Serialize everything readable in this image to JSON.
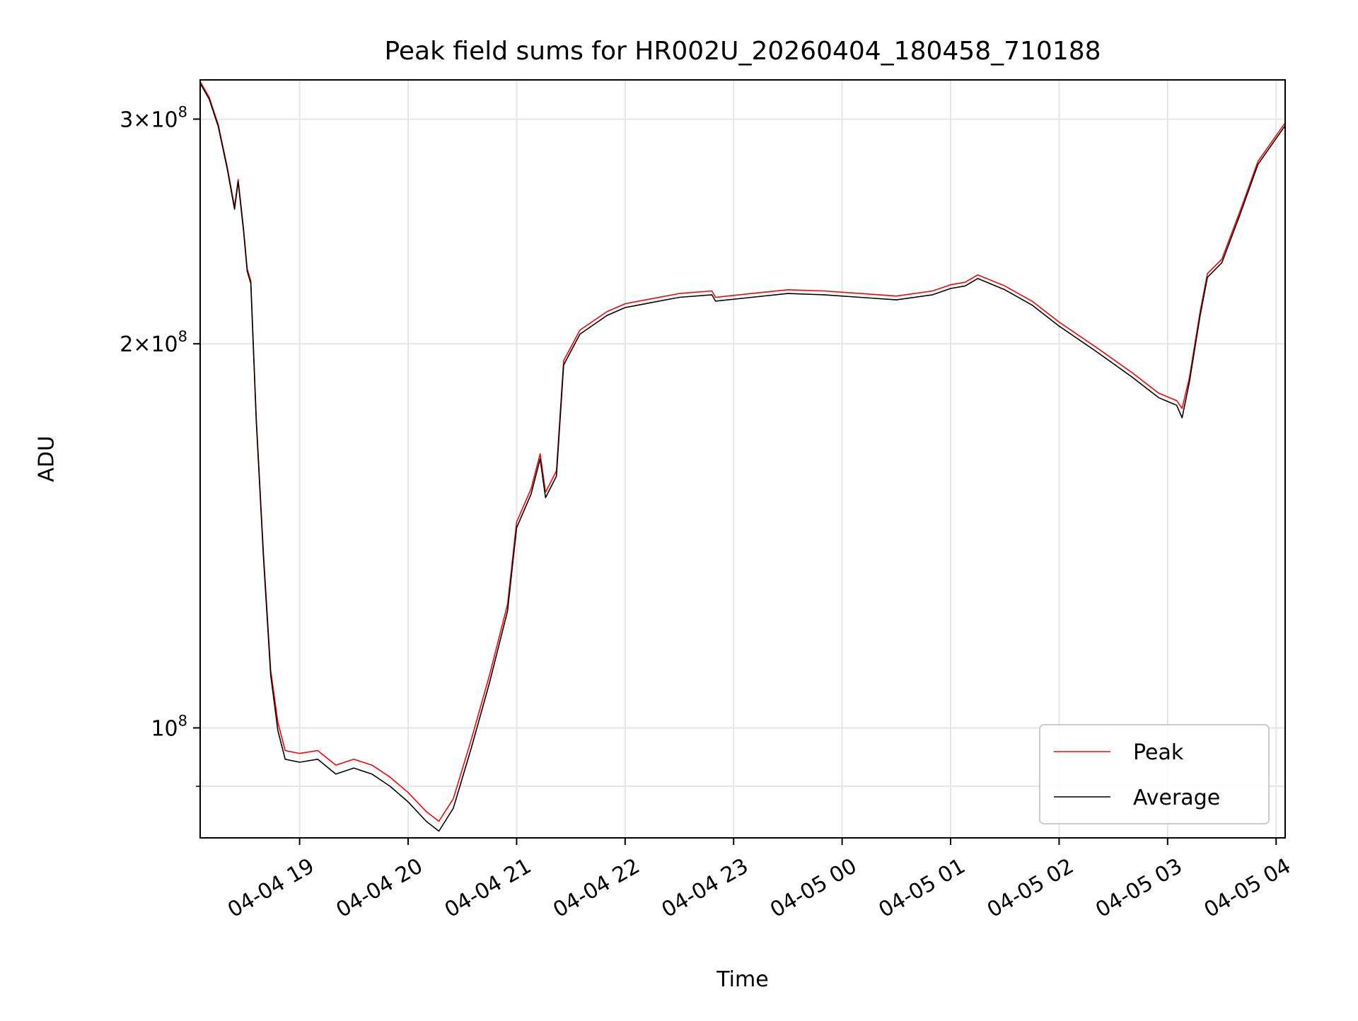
{
  "chart_data": {
    "type": "line",
    "title": "Peak field sums for HR002U_20260404_180458_710188",
    "xlabel": "Time",
    "ylabel": "ADU",
    "yscale": "log",
    "xlim": [
      "2026-04-04 18:05",
      "2026-04-05 04:05"
    ],
    "ylim": [
      82000000,
      322000000
    ],
    "x_tick_labels": [
      "04-04 19",
      "04-04 20",
      "04-04 21",
      "04-04 22",
      "04-04 23",
      "04-05 00",
      "04-05 01",
      "04-05 02",
      "04-05 03",
      "04-05 04"
    ],
    "x_ticks": [
      "2026-04-04 19:00",
      "2026-04-04 20:00",
      "2026-04-04 21:00",
      "2026-04-04 22:00",
      "2026-04-04 23:00",
      "2026-04-05 00:00",
      "2026-04-05 01:00",
      "2026-04-05 02:00",
      "2026-04-05 03:00",
      "2026-04-05 04:00"
    ],
    "y_ticks": [
      {
        "value": 100000000,
        "mant": "",
        "exp": "8",
        "base": "10"
      },
      {
        "value": 200000000,
        "mant": "2",
        "exp": "8",
        "base": "10"
      },
      {
        "value": 300000000,
        "mant": "3",
        "exp": "8",
        "base": "10"
      }
    ],
    "y_minor_ticks": [
      90000000
    ],
    "grid": true,
    "legend_position": "lower-right",
    "series": [
      {
        "name": "Peak",
        "color": "#ff0000",
        "points": [
          [
            "2026-04-04 18:05",
            321000000
          ],
          [
            "2026-04-04 18:10",
            312000000
          ],
          [
            "2026-04-04 18:15",
            297000000
          ],
          [
            "2026-04-04 18:20",
            275000000
          ],
          [
            "2026-04-04 18:24",
            256000000
          ],
          [
            "2026-04-04 18:26",
            269000000
          ],
          [
            "2026-04-04 18:29",
            246000000
          ],
          [
            "2026-04-04 18:31",
            229000000
          ],
          [
            "2026-04-04 18:33",
            224000000
          ],
          [
            "2026-04-04 18:36",
            175000000
          ],
          [
            "2026-04-04 18:40",
            137000000
          ],
          [
            "2026-04-04 18:44",
            111000000
          ],
          [
            "2026-04-04 18:48",
            101000000
          ],
          [
            "2026-04-04 18:52",
            96000000
          ],
          [
            "2026-04-04 19:00",
            95500000
          ],
          [
            "2026-04-04 19:10",
            96000000
          ],
          [
            "2026-04-04 19:20",
            93500000
          ],
          [
            "2026-04-04 19:30",
            94500000
          ],
          [
            "2026-04-04 19:40",
            93500000
          ],
          [
            "2026-04-04 19:50",
            91500000
          ],
          [
            "2026-04-04 20:00",
            89000000
          ],
          [
            "2026-04-04 20:10",
            86000000
          ],
          [
            "2026-04-04 20:17",
            84500000
          ],
          [
            "2026-04-04 20:25",
            88000000
          ],
          [
            "2026-04-04 20:35",
            98000000
          ],
          [
            "2026-04-04 20:45",
            110000000
          ],
          [
            "2026-04-04 20:55",
            125000000
          ],
          [
            "2026-04-04 21:00",
            145000000
          ],
          [
            "2026-04-04 21:08",
            154000000
          ],
          [
            "2026-04-04 21:13",
            164000000
          ],
          [
            "2026-04-04 21:16",
            153000000
          ],
          [
            "2026-04-04 21:22",
            159000000
          ],
          [
            "2026-04-04 21:26",
            194000000
          ],
          [
            "2026-04-04 21:35",
            205000000
          ],
          [
            "2026-04-04 21:50",
            212000000
          ],
          [
            "2026-04-04 22:00",
            215000000
          ],
          [
            "2026-04-04 22:15",
            217000000
          ],
          [
            "2026-04-04 22:30",
            219000000
          ],
          [
            "2026-04-04 22:48",
            220000000
          ],
          [
            "2026-04-04 22:50",
            217500000
          ],
          [
            "2026-04-04 23:10",
            219000000
          ],
          [
            "2026-04-04 23:30",
            220500000
          ],
          [
            "2026-04-04 23:50",
            220000000
          ],
          [
            "2026-04-05 00:10",
            219000000
          ],
          [
            "2026-04-05 00:30",
            218000000
          ],
          [
            "2026-04-05 00:50",
            220000000
          ],
          [
            "2026-04-05 01:00",
            222500000
          ],
          [
            "2026-04-05 01:08",
            223500000
          ],
          [
            "2026-04-05 01:15",
            226500000
          ],
          [
            "2026-04-05 01:30",
            222000000
          ],
          [
            "2026-04-05 01:45",
            216000000
          ],
          [
            "2026-04-05 02:00",
            208000000
          ],
          [
            "2026-04-05 02:20",
            199000000
          ],
          [
            "2026-04-05 02:40",
            190000000
          ],
          [
            "2026-04-05 02:55",
            183000000
          ],
          [
            "2026-04-05 03:05",
            180500000
          ],
          [
            "2026-04-05 03:08",
            178000000
          ],
          [
            "2026-04-05 03:12",
            188000000
          ],
          [
            "2026-04-05 03:18",
            212000000
          ],
          [
            "2026-04-05 03:22",
            227000000
          ],
          [
            "2026-04-05 03:30",
            233000000
          ],
          [
            "2026-04-05 03:40",
            254000000
          ],
          [
            "2026-04-05 03:50",
            278000000
          ],
          [
            "2026-04-05 04:05",
            298000000
          ]
        ]
      },
      {
        "name": "Average",
        "color": "#000000",
        "points": [
          [
            "2026-04-04 18:05",
            320000000
          ],
          [
            "2026-04-04 18:10",
            311000000
          ],
          [
            "2026-04-04 18:15",
            296000000
          ],
          [
            "2026-04-04 18:20",
            274000000
          ],
          [
            "2026-04-04 18:24",
            255000000
          ],
          [
            "2026-04-04 18:26",
            268000000
          ],
          [
            "2026-04-04 18:29",
            245000000
          ],
          [
            "2026-04-04 18:31",
            228000000
          ],
          [
            "2026-04-04 18:33",
            223000000
          ],
          [
            "2026-04-04 18:36",
            174000000
          ],
          [
            "2026-04-04 18:40",
            136000000
          ],
          [
            "2026-04-04 18:44",
            110000000
          ],
          [
            "2026-04-04 18:48",
            99500000
          ],
          [
            "2026-04-04 18:52",
            94500000
          ],
          [
            "2026-04-04 19:00",
            94000000
          ],
          [
            "2026-04-04 19:10",
            94500000
          ],
          [
            "2026-04-04 19:20",
            92000000
          ],
          [
            "2026-04-04 19:30",
            93000000
          ],
          [
            "2026-04-04 19:40",
            92000000
          ],
          [
            "2026-04-04 19:50",
            90000000
          ],
          [
            "2026-04-04 20:00",
            87500000
          ],
          [
            "2026-04-04 20:10",
            84500000
          ],
          [
            "2026-04-04 20:17",
            83000000
          ],
          [
            "2026-04-04 20:25",
            86500000
          ],
          [
            "2026-04-04 20:35",
            96500000
          ],
          [
            "2026-04-04 20:45",
            108500000
          ],
          [
            "2026-04-04 20:55",
            123500000
          ],
          [
            "2026-04-04 21:00",
            143500000
          ],
          [
            "2026-04-04 21:08",
            152500000
          ],
          [
            "2026-04-04 21:13",
            162500000
          ],
          [
            "2026-04-04 21:16",
            151500000
          ],
          [
            "2026-04-04 21:22",
            157500000
          ],
          [
            "2026-04-04 21:26",
            192500000
          ],
          [
            "2026-04-04 21:35",
            203500000
          ],
          [
            "2026-04-04 21:50",
            210500000
          ],
          [
            "2026-04-04 22:00",
            213500000
          ],
          [
            "2026-04-04 22:15",
            215500000
          ],
          [
            "2026-04-04 22:30",
            217500000
          ],
          [
            "2026-04-04 22:48",
            218500000
          ],
          [
            "2026-04-04 22:50",
            216000000
          ],
          [
            "2026-04-04 23:10",
            217500000
          ],
          [
            "2026-04-04 23:30",
            219000000
          ],
          [
            "2026-04-04 23:50",
            218500000
          ],
          [
            "2026-04-05 00:10",
            217500000
          ],
          [
            "2026-04-05 00:30",
            216500000
          ],
          [
            "2026-04-05 00:50",
            218500000
          ],
          [
            "2026-04-05 01:00",
            221000000
          ],
          [
            "2026-04-05 01:08",
            222000000
          ],
          [
            "2026-04-05 01:15",
            225000000
          ],
          [
            "2026-04-05 01:30",
            220500000
          ],
          [
            "2026-04-05 01:45",
            214500000
          ],
          [
            "2026-04-05 02:00",
            206500000
          ],
          [
            "2026-04-05 02:20",
            197500000
          ],
          [
            "2026-04-05 02:40",
            188500000
          ],
          [
            "2026-04-05 02:55",
            181500000
          ],
          [
            "2026-04-05 03:05",
            179000000
          ],
          [
            "2026-04-05 03:08",
            175000000
          ],
          [
            "2026-04-05 03:12",
            186500000
          ],
          [
            "2026-04-05 03:18",
            210500000
          ],
          [
            "2026-04-05 03:22",
            225500000
          ],
          [
            "2026-04-05 03:30",
            231500000
          ],
          [
            "2026-04-05 03:40",
            252500000
          ],
          [
            "2026-04-05 03:50",
            276500000
          ],
          [
            "2026-04-05 04:05",
            296500000
          ]
        ]
      }
    ]
  }
}
